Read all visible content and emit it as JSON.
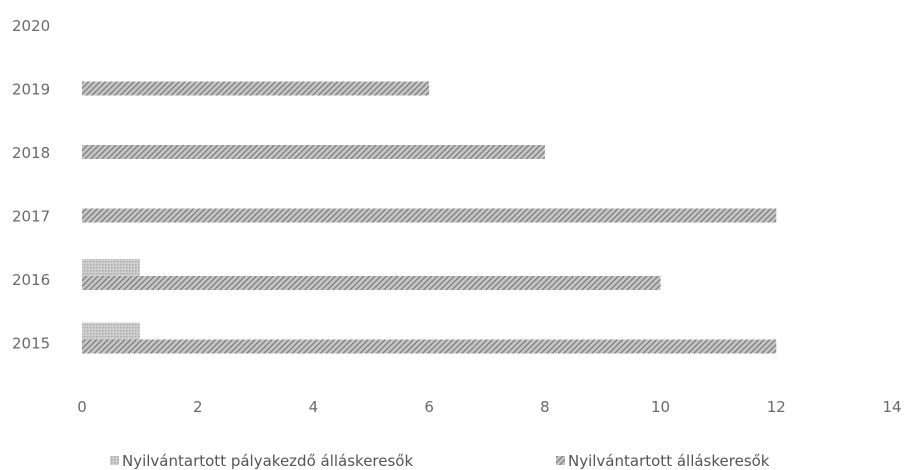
{
  "chart_data": {
    "type": "bar",
    "orientation": "horizontal",
    "categories": [
      "2020",
      "2019",
      "2018",
      "2017",
      "2016",
      "2015"
    ],
    "series": [
      {
        "name": "Nyilvántartott pályakezdő álláskeresők",
        "values": [
          null,
          null,
          null,
          null,
          1,
          1
        ],
        "color": "#b8b8b8"
      },
      {
        "name": "Nyilvántartott álláskeresők",
        "values": [
          null,
          6,
          8,
          12,
          10,
          12
        ],
        "color": "#9a9a9a"
      }
    ],
    "xlim": [
      0,
      14
    ],
    "x_ticks": [
      0,
      2,
      4,
      6,
      8,
      10,
      12,
      14
    ],
    "grid": false,
    "legend": "bottom"
  }
}
